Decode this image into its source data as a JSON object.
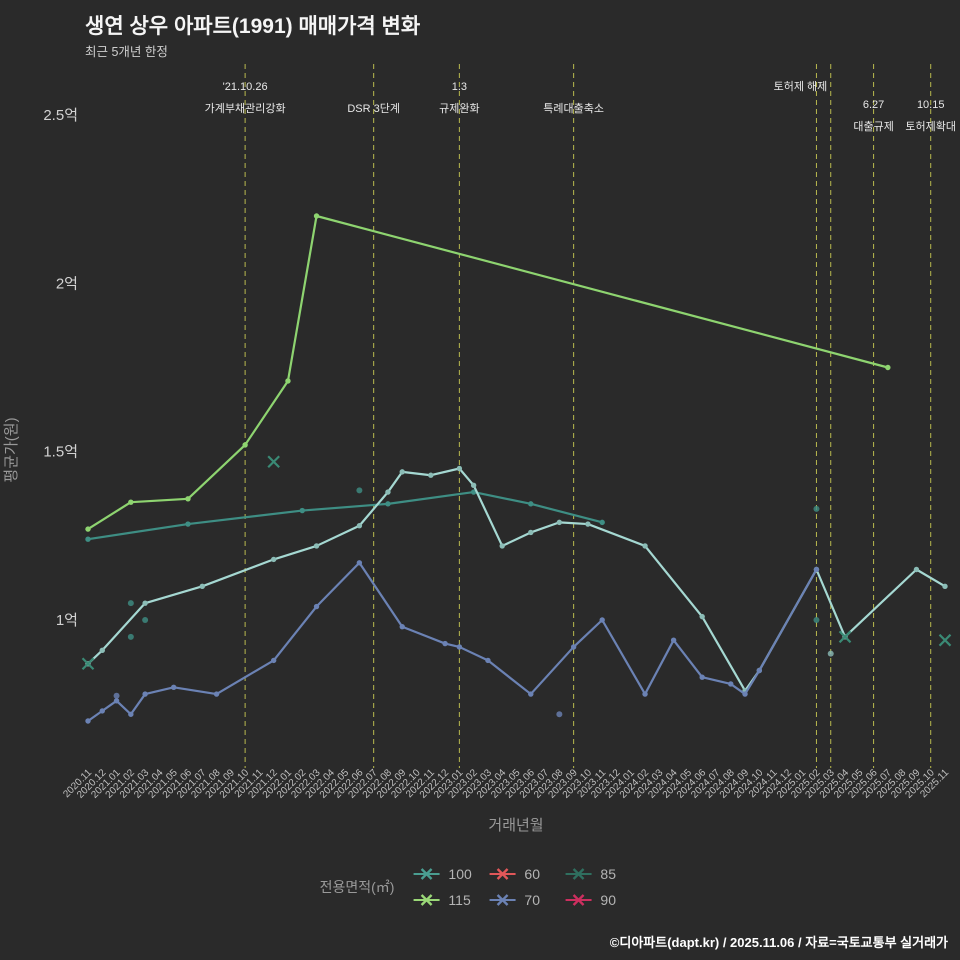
{
  "title": "생연 상우 아파트(1991) 매매가격 변화",
  "subtitle": "최근 5개년 한정",
  "footer": "©디아파트(dapt.kr) / 2025.11.06 / 자료=국토교통부 실거래가",
  "legend": {
    "label": "전용면적(㎡)",
    "items": [
      {
        "name": "100",
        "color": "#4a9e91"
      },
      {
        "name": "60",
        "color": "#e15759"
      },
      {
        "name": "85",
        "color": "#2f6f5f"
      },
      {
        "name": "115",
        "color": "#9ad877"
      },
      {
        "name": "70",
        "color": "#6b82b4"
      },
      {
        "name": "90",
        "color": "#cc2f5f"
      }
    ]
  },
  "chart_data": {
    "type": "line",
    "x_label": "거래년월",
    "y_label": "평균가(원)",
    "y_unit": "억",
    "y_range": [
      0.55,
      2.72
    ],
    "y_ticks": [
      {
        "label": "2.5억",
        "value": 2.5
      },
      {
        "label": "2억",
        "value": 2.0
      },
      {
        "label": "1.5억",
        "value": 1.5
      },
      {
        "label": "1억",
        "value": 1.0
      }
    ],
    "months": [
      "2020.11",
      "2020.12",
      "2021.01",
      "2021.02",
      "2021.03",
      "2021.04",
      "2021.05",
      "2021.06",
      "2021.07",
      "2021.08",
      "2021.09",
      "2021.10",
      "2021.11",
      "2021.12",
      "2022.01",
      "2022.02",
      "2022.03",
      "2022.04",
      "2022.05",
      "2022.06",
      "2022.07",
      "2022.08",
      "2022.09",
      "2022.10",
      "2022.11",
      "2022.12",
      "2023.01",
      "2023.02",
      "2023.03",
      "2023.04",
      "2023.05",
      "2023.06",
      "2023.07",
      "2023.08",
      "2023.09",
      "2023.10",
      "2023.11",
      "2023.12",
      "2024.01",
      "2024.02",
      "2024.03",
      "2024.04",
      "2024.05",
      "2024.06",
      "2024.07",
      "2024.08",
      "2024.09",
      "2024.10",
      "2024.11",
      "2024.12",
      "2025.01",
      "2025.02",
      "2025.03",
      "2025.04",
      "2025.05",
      "2025.06",
      "2025.07",
      "2025.08",
      "2025.09",
      "2025.10",
      "2025.11"
    ],
    "series": [
      {
        "name": "115",
        "color": "#8ed470",
        "points": [
          [
            "2020.11",
            1.27
          ],
          [
            "2021.02",
            1.35
          ],
          [
            "2021.06",
            1.36
          ],
          [
            "2021.10",
            1.52
          ],
          [
            "2022.01",
            1.71
          ],
          [
            "2022.03",
            2.2
          ],
          [
            "2025.07",
            1.75
          ]
        ]
      },
      {
        "name": "100",
        "color": "#3e8e84",
        "points": [
          [
            "2020.11",
            1.24
          ],
          [
            "2021.06",
            1.285
          ],
          [
            "2022.02",
            1.325
          ],
          [
            "2022.08",
            1.345
          ],
          [
            "2023.02",
            1.38
          ],
          [
            "2023.06",
            1.345
          ],
          [
            "2023.11",
            1.29
          ]
        ]
      },
      {
        "name": "85",
        "color": "#a5d8d2",
        "dot": "#8bbcb6",
        "points": [
          [
            "2020.11",
            0.87
          ],
          [
            "2020.12",
            0.91
          ],
          [
            "2021.03",
            1.05
          ],
          [
            "2021.07",
            1.1
          ],
          [
            "2021.12",
            1.18
          ],
          [
            "2022.03",
            1.22
          ],
          [
            "2022.06",
            1.28
          ],
          [
            "2022.08",
            1.38
          ],
          [
            "2022.09",
            1.44
          ],
          [
            "2022.11",
            1.43
          ],
          [
            "2023.01",
            1.45
          ],
          [
            "2023.02",
            1.4
          ],
          [
            "2023.04",
            1.22
          ],
          [
            "2023.06",
            1.26
          ],
          [
            "2023.08",
            1.29
          ],
          [
            "2023.10",
            1.285
          ],
          [
            "2024.02",
            1.22
          ],
          [
            "2024.06",
            1.01
          ],
          [
            "2024.09",
            0.79
          ],
          [
            "2024.10",
            0.85
          ],
          [
            "2025.02",
            1.15
          ],
          [
            "2025.04",
            0.95
          ],
          [
            "2025.09",
            1.15
          ],
          [
            "2025.11",
            1.1
          ]
        ]
      },
      {
        "name": "70",
        "color": "#6b82b4",
        "points": [
          [
            "2020.11",
            0.7
          ],
          [
            "2020.12",
            0.73
          ],
          [
            "2021.01",
            0.76
          ],
          [
            "2021.02",
            0.72
          ],
          [
            "2021.03",
            0.78
          ],
          [
            "2021.05",
            0.8
          ],
          [
            "2021.08",
            0.78
          ],
          [
            "2021.12",
            0.88
          ],
          [
            "2022.03",
            1.04
          ],
          [
            "2022.06",
            1.17
          ],
          [
            "2022.09",
            0.98
          ],
          [
            "2022.12",
            0.93
          ],
          [
            "2023.01",
            0.92
          ],
          [
            "2023.03",
            0.88
          ],
          [
            "2023.06",
            0.78
          ],
          [
            "2023.09",
            0.92
          ],
          [
            "2023.11",
            1.0
          ],
          [
            "2024.02",
            0.78
          ],
          [
            "2024.04",
            0.94
          ],
          [
            "2024.06",
            0.83
          ],
          [
            "2024.08",
            0.81
          ],
          [
            "2024.09",
            0.78
          ],
          [
            "2024.10",
            0.85
          ],
          [
            "2025.02",
            1.15
          ]
        ]
      }
    ],
    "scatter": [
      {
        "series": "100",
        "month": "2021.02",
        "value": 1.05
      },
      {
        "series": "100",
        "month": "2021.03",
        "value": 1.0
      },
      {
        "series": "100",
        "month": "2021.02",
        "value": 0.95
      },
      {
        "series": "70",
        "month": "2021.01",
        "value": 0.775
      },
      {
        "series": "100",
        "month": "2022.06",
        "value": 1.385
      },
      {
        "series": "70",
        "month": "2023.08",
        "value": 0.72
      },
      {
        "series": "100",
        "month": "2025.02",
        "value": 1.33
      },
      {
        "series": "100",
        "month": "2025.02",
        "value": 1.0
      },
      {
        "series": "85",
        "month": "2025.03",
        "value": 0.9
      }
    ],
    "x_markers": [
      {
        "month": "2020.11",
        "value": 0.87
      },
      {
        "month": "2021.12",
        "value": 1.47
      },
      {
        "month": "2025.04",
        "value": 0.95
      },
      {
        "month": "2025.11",
        "value": 0.94
      }
    ],
    "annotations": [
      {
        "month": "2021.10",
        "lines": [
          "'21.10.26",
          "가계부채관리강화"
        ],
        "tier": 0
      },
      {
        "month": "2022.07",
        "lines": [
          "",
          "DSR 3단계"
        ],
        "tier": 0
      },
      {
        "month": "2023.01",
        "lines": [
          "1.3",
          "규제완화"
        ],
        "tier": 0
      },
      {
        "month": "2023.09",
        "lines": [
          "",
          "특례대출축소"
        ],
        "tier": 0
      },
      {
        "month": "2025.02",
        "lines": [
          "토허제 해제",
          ""
        ],
        "tier": 0,
        "dx": -16
      },
      {
        "month": "2025.03",
        "lines": [
          "",
          ""
        ],
        "tier": 0
      },
      {
        "month": "2025.06",
        "lines": [
          "6.27",
          "대출규제"
        ],
        "tier": 1
      },
      {
        "month": "2025.10",
        "lines": [
          "10.15",
          "토허제확대"
        ],
        "tier": 1
      }
    ],
    "colors": {
      "background": "#2a2a2a",
      "event_line": "#b9ba4e",
      "x_marker": "#3a8a75",
      "axis_text": "#c0c0c0",
      "axis_title": "#999999"
    }
  }
}
